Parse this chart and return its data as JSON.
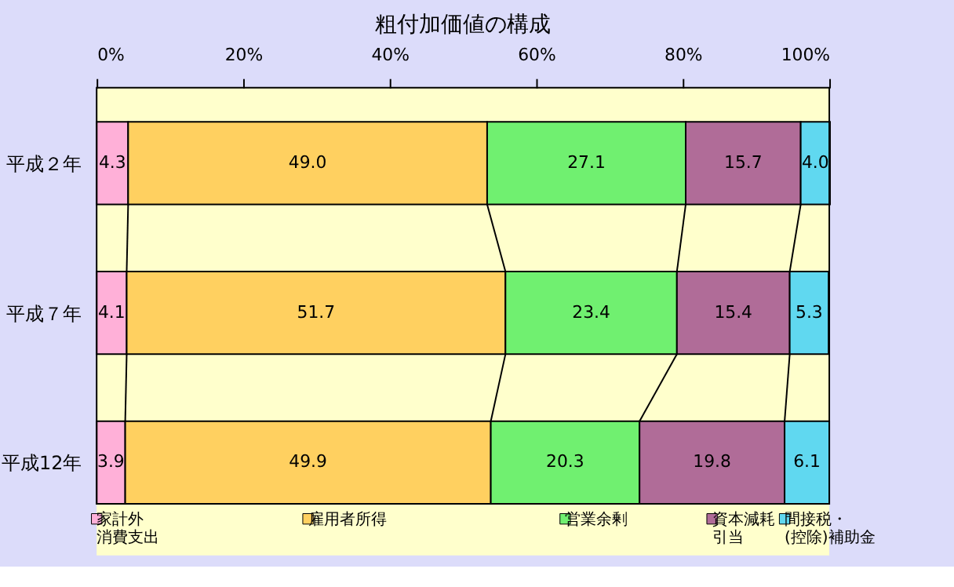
{
  "chart_data": {
    "type": "bar",
    "orientation": "horizontal",
    "stacked": true,
    "title": "粗付加価値の構成",
    "categories": [
      "平成２年",
      "平成７年",
      "平成12年"
    ],
    "series": [
      {
        "name": "家計外消費支出",
        "color": "#ffb0d8",
        "values": [
          4.3,
          4.1,
          3.9
        ],
        "value_labels": [
          "4.3",
          "4.1",
          "3.9"
        ]
      },
      {
        "name": "雇用者所得",
        "color": "#ffd060",
        "values": [
          49.0,
          51.7,
          49.9
        ],
        "value_labels": [
          "49.0",
          "51.7",
          "49.9"
        ]
      },
      {
        "name": "営業余剰",
        "color": "#70f070",
        "values": [
          27.1,
          23.4,
          20.3
        ],
        "value_labels": [
          "27.1",
          "23.4",
          "20.3"
        ]
      },
      {
        "name": "資本減耗引当",
        "color": "#b06c98",
        "values": [
          15.7,
          15.4,
          19.8
        ],
        "value_labels": [
          "15.7",
          "15.4",
          "19.8"
        ]
      },
      {
        "name": "間接税・(控除)補助金",
        "color": "#60d8f0",
        "values": [
          4.0,
          5.3,
          6.1
        ],
        "value_labels": [
          "4.0",
          "5.3",
          "6.1"
        ]
      }
    ],
    "xlim": [
      0,
      100
    ],
    "xticks": [
      {
        "value": 0,
        "label": "0%"
      },
      {
        "value": 20,
        "label": "20%"
      },
      {
        "value": 40,
        "label": "40%"
      },
      {
        "value": 60,
        "label": "60%"
      },
      {
        "value": 80,
        "label": "80%"
      },
      {
        "value": 100,
        "label": "100%"
      }
    ],
    "grid": false,
    "legend": "bottom"
  }
}
